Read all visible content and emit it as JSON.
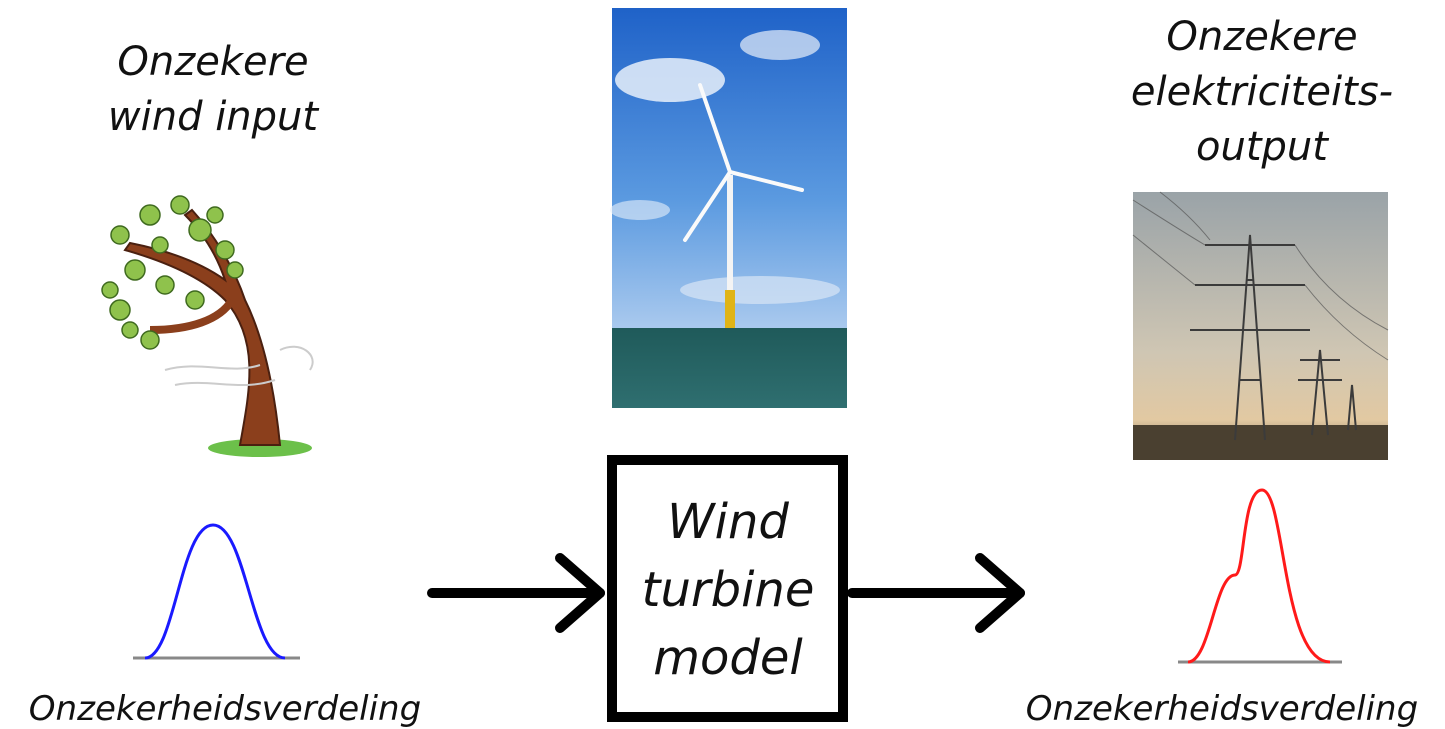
{
  "input": {
    "title_lines": [
      "Onzekere",
      "wind input"
    ],
    "caption": "Onzekerheidsverdeling"
  },
  "model": {
    "label_lines": [
      "Wind",
      "turbine",
      "model"
    ]
  },
  "output": {
    "title_lines": [
      "Onzekere",
      "elektriciteits-",
      "output"
    ],
    "caption": "Onzekerheidsverdeling"
  }
}
